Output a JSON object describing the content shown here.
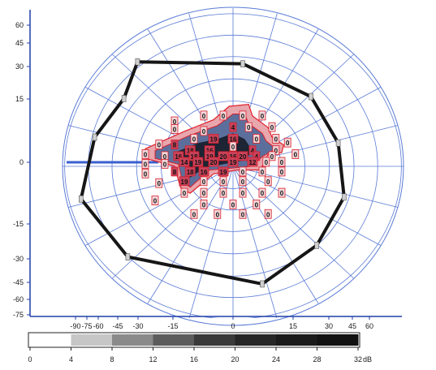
{
  "chart_data": {
    "type": "scatter",
    "title": "",
    "xlabel": "",
    "ylabel": "",
    "x_ticks": [
      "-90",
      "-75",
      "-60",
      "-45",
      "-30",
      "-15",
      "0",
      "15",
      "30",
      "45",
      "60"
    ],
    "y_ticks": [
      "60",
      "45",
      "30",
      "15",
      "0",
      "-15",
      "-30",
      "-45",
      "-60",
      "-75"
    ],
    "xlim": [
      -90,
      60
    ],
    "ylim": [
      -75,
      65
    ],
    "grid": true,
    "colorbar": {
      "ticks": [
        "0",
        "4",
        "8",
        "12",
        "16",
        "20",
        "24",
        "28",
        "32"
      ],
      "unit": "dB",
      "range": [
        0,
        32
      ],
      "colors": [
        "#ffffff",
        "#c6c6c6",
        "#8a8a8a",
        "#5c5c5c",
        "#3a3a3a",
        "#262626",
        "#1a1a1a",
        "#111111"
      ]
    },
    "isopter": [
      {
        "x": -49,
        "y": 52
      },
      {
        "x": 5,
        "y": 51
      },
      {
        "x": 40,
        "y": 34
      },
      {
        "x": 54,
        "y": 10
      },
      {
        "x": 57,
        "y": -18
      },
      {
        "x": 43,
        "y": -43
      },
      {
        "x": 15,
        "y": -63
      },
      {
        "x": -54,
        "y": -49
      },
      {
        "x": -78,
        "y": -19
      },
      {
        "x": -71,
        "y": 13
      },
      {
        "x": -56,
        "y": 33
      }
    ],
    "stimulus_points": [
      {
        "x": -30,
        "y": 21,
        "value": 0
      },
      {
        "x": -15,
        "y": 24,
        "value": 0
      },
      {
        "x": -5,
        "y": 24,
        "value": 0
      },
      {
        "x": 5,
        "y": 24,
        "value": 0
      },
      {
        "x": 15,
        "y": 24,
        "value": 0
      },
      {
        "x": -30,
        "y": 17,
        "value": 0
      },
      {
        "x": -15,
        "y": 16,
        "value": 0
      },
      {
        "x": 0,
        "y": 18,
        "value": 4
      },
      {
        "x": 8,
        "y": 18,
        "value": 0
      },
      {
        "x": 20,
        "y": 18,
        "value": 0
      },
      {
        "x": -20,
        "y": 12,
        "value": 0
      },
      {
        "x": -10,
        "y": 12,
        "value": 19
      },
      {
        "x": 0,
        "y": 12,
        "value": 16
      },
      {
        "x": 12,
        "y": 12,
        "value": 0
      },
      {
        "x": 22,
        "y": 12,
        "value": 0
      },
      {
        "x": -38,
        "y": 9,
        "value": 0
      },
      {
        "x": -30,
        "y": 9,
        "value": 8
      },
      {
        "x": -22,
        "y": 6,
        "value": 18
      },
      {
        "x": -12,
        "y": 6,
        "value": 16
      },
      {
        "x": 0,
        "y": 8,
        "value": 0
      },
      {
        "x": 10,
        "y": 6,
        "value": 4
      },
      {
        "x": 22,
        "y": 6,
        "value": 0
      },
      {
        "x": 28,
        "y": 10,
        "value": 0
      },
      {
        "x": -45,
        "y": 4,
        "value": 0
      },
      {
        "x": -35,
        "y": 3,
        "value": 0
      },
      {
        "x": -28,
        "y": 3,
        "value": 16
      },
      {
        "x": -20,
        "y": 3,
        "value": 18
      },
      {
        "x": -12,
        "y": 3,
        "value": 19
      },
      {
        "x": -5,
        "y": 3,
        "value": 20
      },
      {
        "x": 0,
        "y": 3,
        "value": 16
      },
      {
        "x": 5,
        "y": 3,
        "value": 20
      },
      {
        "x": 12,
        "y": 3,
        "value": 4
      },
      {
        "x": 20,
        "y": 3,
        "value": 0
      },
      {
        "x": 32,
        "y": 4,
        "value": 0
      },
      {
        "x": -45,
        "y": -1,
        "value": 0
      },
      {
        "x": -35,
        "y": -1,
        "value": 0
      },
      {
        "x": -25,
        "y": 0,
        "value": 14
      },
      {
        "x": -18,
        "y": 0,
        "value": 19
      },
      {
        "x": -10,
        "y": 0,
        "value": 20
      },
      {
        "x": 0,
        "y": 0,
        "value": 19
      },
      {
        "x": 10,
        "y": 0,
        "value": 12
      },
      {
        "x": 17,
        "y": 0,
        "value": 0
      },
      {
        "x": 25,
        "y": 0,
        "value": 0
      },
      {
        "x": -45,
        "y": -6,
        "value": 0
      },
      {
        "x": -30,
        "y": -5,
        "value": 8
      },
      {
        "x": -22,
        "y": -5,
        "value": 18
      },
      {
        "x": -15,
        "y": -5,
        "value": 16
      },
      {
        "x": -5,
        "y": -5,
        "value": 19
      },
      {
        "x": 5,
        "y": -5,
        "value": 0
      },
      {
        "x": 15,
        "y": -5,
        "value": 0
      },
      {
        "x": 25,
        "y": -5,
        "value": 0
      },
      {
        "x": -38,
        "y": -11,
        "value": 0
      },
      {
        "x": -25,
        "y": -10,
        "value": 19
      },
      {
        "x": -15,
        "y": -10,
        "value": 0
      },
      {
        "x": -5,
        "y": -10,
        "value": 0
      },
      {
        "x": 5,
        "y": -10,
        "value": 0
      },
      {
        "x": 18,
        "y": -10,
        "value": 0
      },
      {
        "x": -25,
        "y": -16,
        "value": 0
      },
      {
        "x": -15,
        "y": -16,
        "value": 0
      },
      {
        "x": -5,
        "y": -16,
        "value": 0
      },
      {
        "x": 5,
        "y": -16,
        "value": 0
      },
      {
        "x": 15,
        "y": -16,
        "value": 0
      },
      {
        "x": 25,
        "y": -16,
        "value": 0
      },
      {
        "x": -40,
        "y": -20,
        "value": 0
      },
      {
        "x": -15,
        "y": -22,
        "value": 0
      },
      {
        "x": 0,
        "y": -22,
        "value": 0
      },
      {
        "x": 12,
        "y": -22,
        "value": 0
      },
      {
        "x": -20,
        "y": -27,
        "value": 0
      },
      {
        "x": -8,
        "y": -27,
        "value": 0
      },
      {
        "x": 5,
        "y": -27,
        "value": 0
      },
      {
        "x": 18,
        "y": -27,
        "value": 0
      }
    ]
  }
}
